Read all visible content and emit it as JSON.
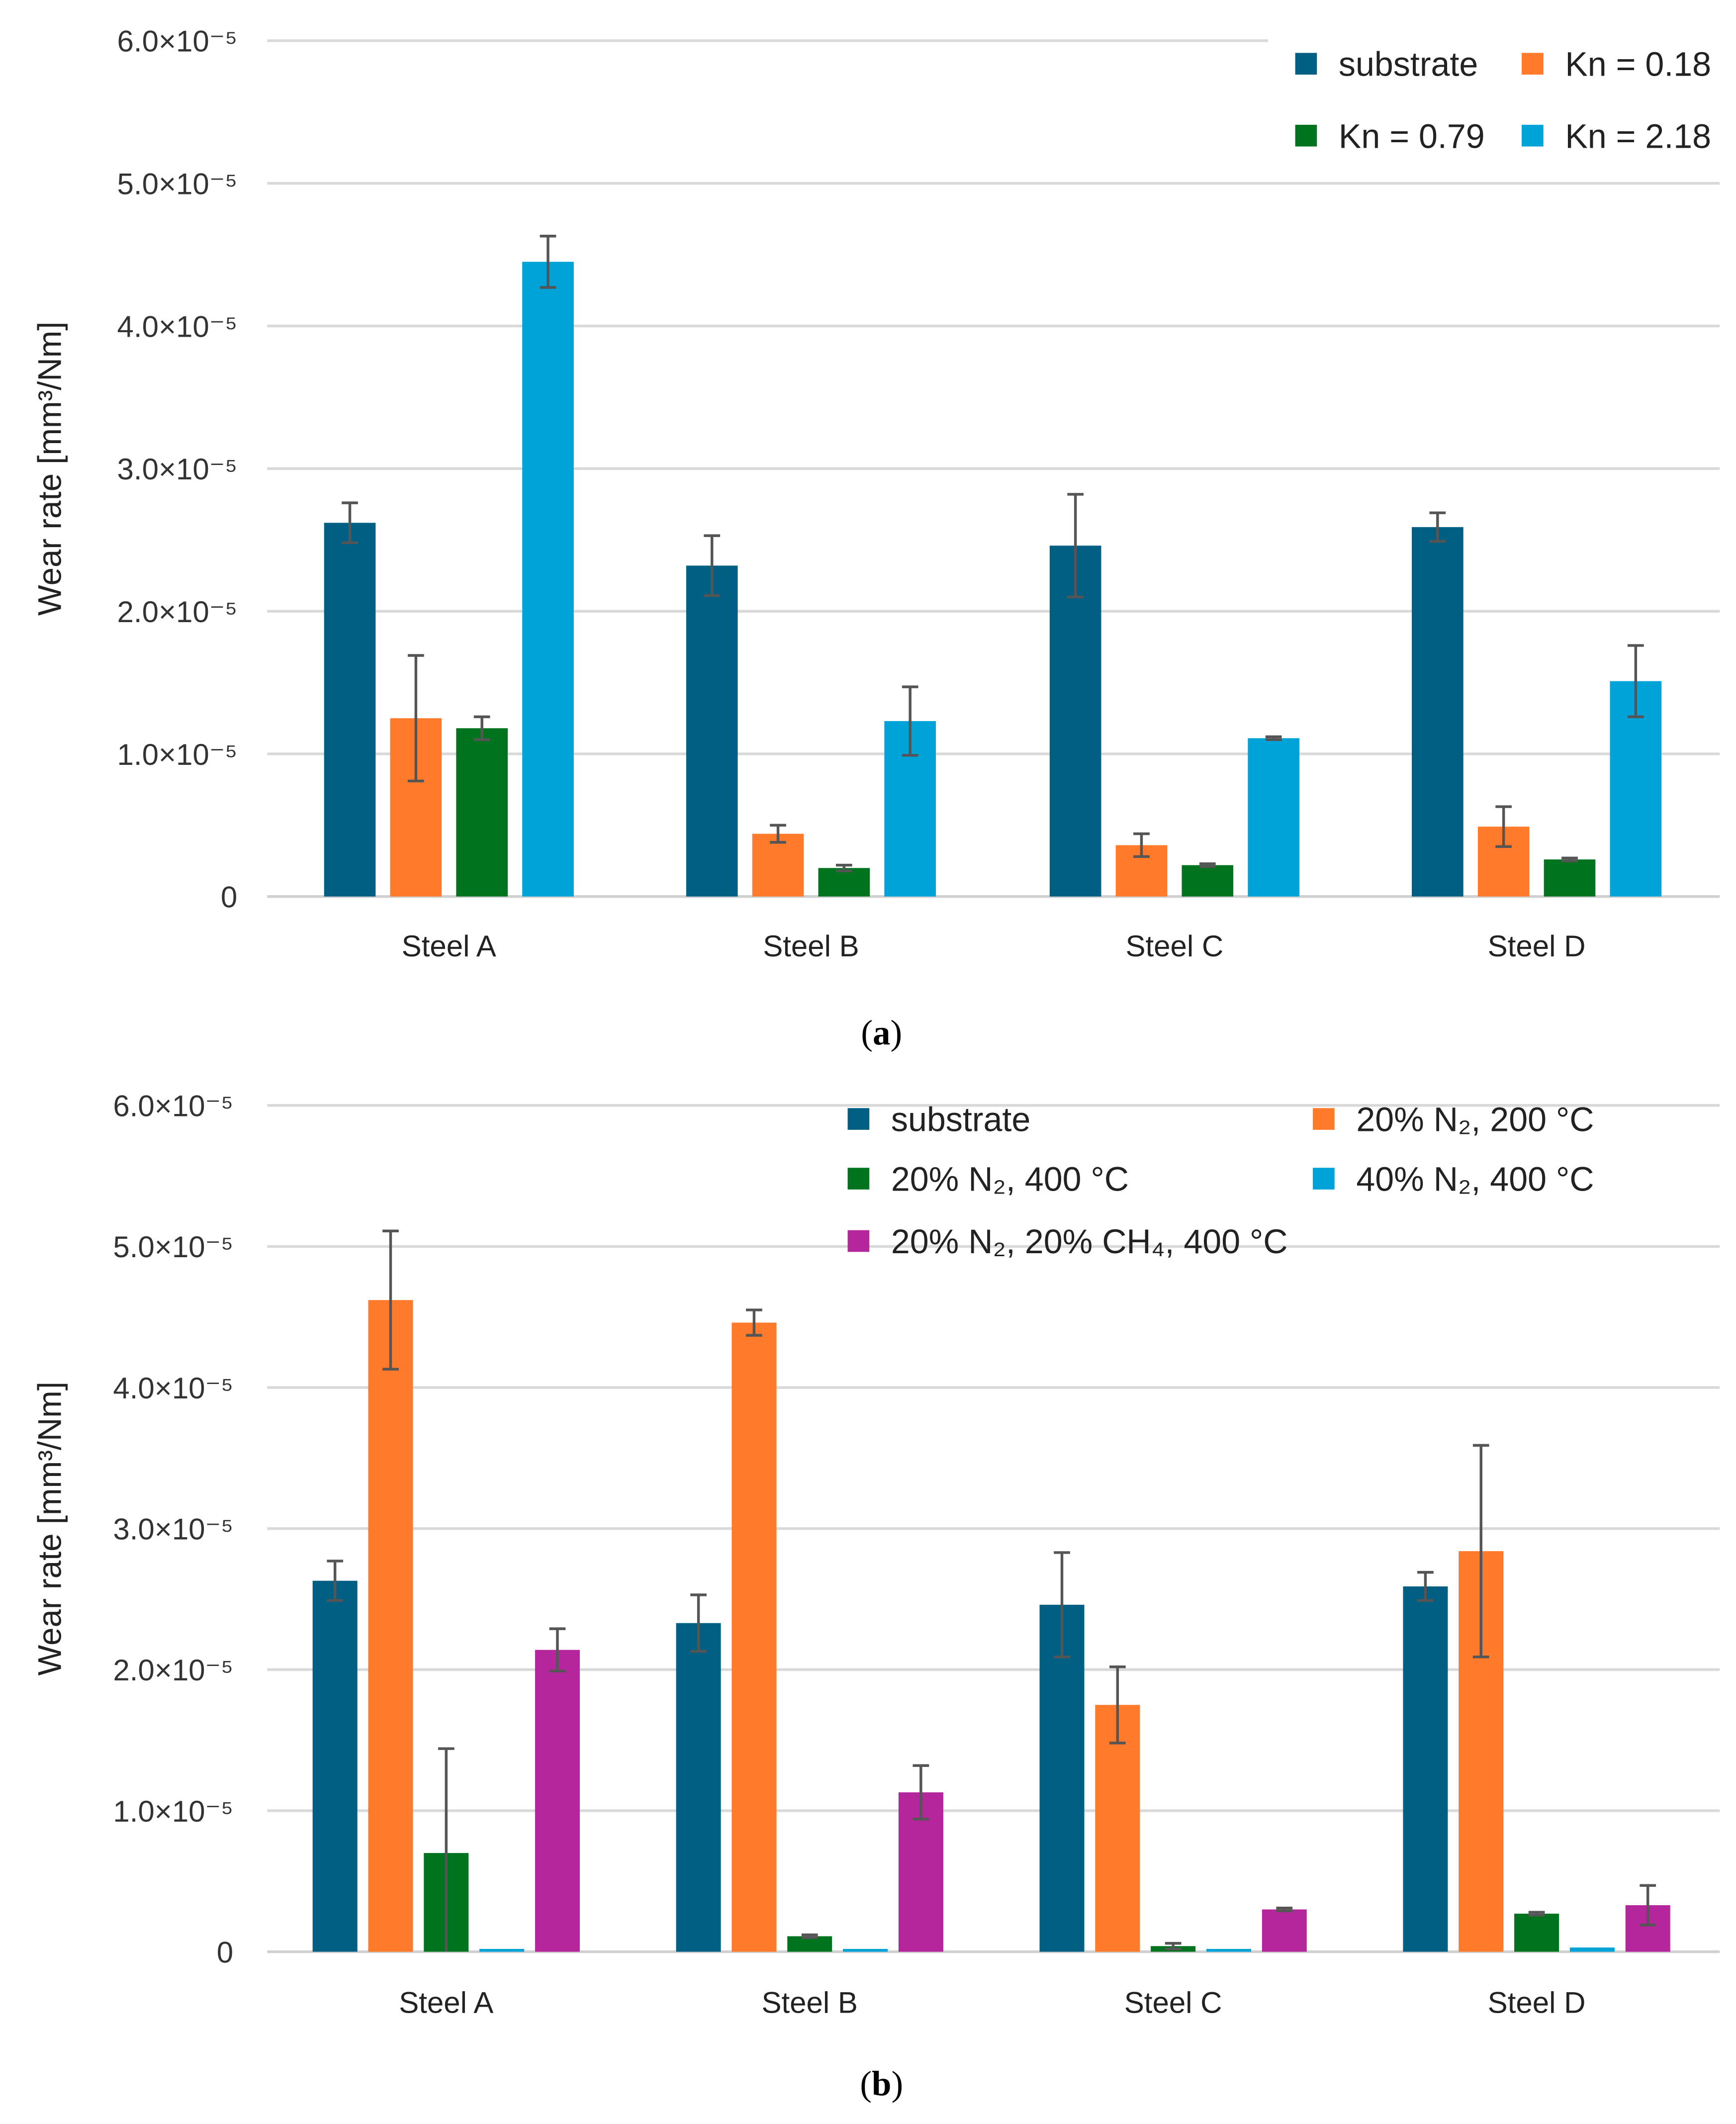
{
  "chart_data": [
    {
      "type": "bar",
      "panel": "a",
      "caption": "a",
      "ylabel": "Wear rate [mm³/Nm]",
      "yunit_multiplier": 1e-05,
      "ylim": [
        0,
        6.0
      ],
      "yticks": [
        "0",
        "1.0×10⁻⁵",
        "2.0×10⁻⁵",
        "3.0×10⁻⁵",
        "4.0×10⁻⁵",
        "5.0×10⁻⁵",
        "6.0×10⁻⁵"
      ],
      "grid": true,
      "legend_position": "top-right",
      "categories": [
        "Steel A",
        "Steel B",
        "Steel C",
        "Steel D"
      ],
      "series": [
        {
          "name": "substrate",
          "color": "#005f83",
          "values": [
            2.62,
            2.32,
            2.46,
            2.59
          ],
          "errors": [
            0.14,
            0.21,
            0.36,
            0.1
          ]
        },
        {
          "name": "Kn = 0.18",
          "color": "#ff7a2b",
          "values": [
            1.25,
            0.44,
            0.36,
            0.49
          ],
          "errors": [
            0.44,
            0.06,
            0.08,
            0.14
          ]
        },
        {
          "name": "Kn = 0.79",
          "color": "#00731f",
          "values": [
            1.18,
            0.2,
            0.22,
            0.26
          ],
          "errors": [
            0.08,
            0.02,
            0.01,
            0.01
          ]
        },
        {
          "name": "Kn = 2.18",
          "color": "#00a3d8",
          "values": [
            4.45,
            1.23,
            1.11,
            1.51
          ],
          "errors": [
            0.18,
            0.24,
            0.01,
            0.25
          ]
        }
      ]
    },
    {
      "type": "bar",
      "panel": "b",
      "caption": "b",
      "ylabel": "Wear rate [mm³/Nm]",
      "yunit_multiplier": 1e-05,
      "ylim": [
        0,
        6.0
      ],
      "yticks": [
        "0",
        "1.0×10⁻⁵",
        "2.0×10⁻⁵",
        "3.0×10⁻⁵",
        "4.0×10⁻⁵",
        "5.0×10⁻⁵",
        "6.0×10⁻⁵"
      ],
      "grid": true,
      "legend_position": "top-right",
      "categories": [
        "Steel A",
        "Steel B",
        "Steel C",
        "Steel D"
      ],
      "series": [
        {
          "name": "substrate",
          "color": "#005f83",
          "values": [
            2.63,
            2.33,
            2.46,
            2.59
          ],
          "errors": [
            0.14,
            0.2,
            0.37,
            0.1
          ]
        },
        {
          "name": "20% N₂, 200 °C",
          "color": "#ff7a2b",
          "values": [
            4.62,
            4.46,
            1.75,
            2.84
          ],
          "errors": [
            0.49,
            0.09,
            0.27,
            0.75
          ]
        },
        {
          "name": "20% N₂, 400 °C",
          "color": "#00731f",
          "values": [
            0.7,
            0.11,
            0.04,
            0.27
          ],
          "errors": [
            0.74,
            0.01,
            0.02,
            0.01
          ]
        },
        {
          "name": "40% N₂, 400 °C",
          "color": "#00a3d8",
          "values": [
            0.02,
            0.02,
            0.02,
            0.03
          ],
          "errors": [
            0.0,
            0.0,
            0.0,
            0.0
          ]
        },
        {
          "name": "20% N₂, 20% CH₄, 400 °C",
          "color": "#b5259b",
          "values": [
            2.14,
            1.13,
            0.3,
            0.33
          ],
          "errors": [
            0.15,
            0.19,
            0.01,
            0.14
          ]
        }
      ]
    }
  ]
}
